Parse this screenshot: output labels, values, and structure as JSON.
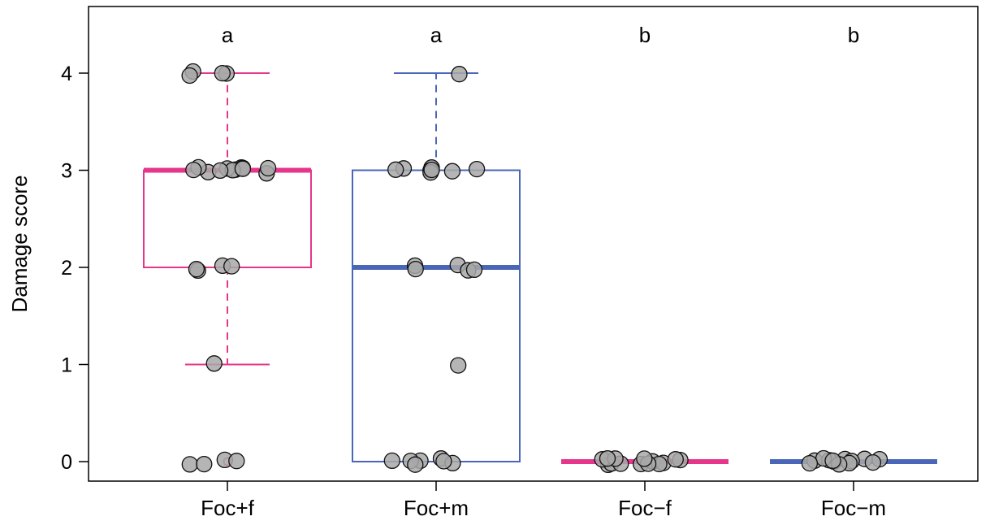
{
  "chart_data": {
    "type": "box",
    "title": "",
    "xlabel": "",
    "ylabel": "Damage score",
    "ylim": [
      -0.2,
      4.65
    ],
    "yticks": [
      0,
      1,
      2,
      3,
      4
    ],
    "grid": false,
    "legend": "none",
    "jitter_points": true,
    "point_color": "#a8a8a8",
    "groups": [
      {
        "name": "Foc+f",
        "color": "#e5368b",
        "letter": "a",
        "box": {
          "min": 1,
          "q1": 2,
          "median": 3,
          "q3": 3,
          "max": 4
        },
        "outliers": [
          0
        ],
        "points": [
          4,
          4,
          4,
          4,
          3,
          3,
          3,
          3,
          3,
          3,
          3,
          3,
          3,
          3,
          3,
          3,
          2,
          2,
          2,
          2,
          1,
          0,
          0,
          0,
          0
        ]
      },
      {
        "name": "Foc+m",
        "color": "#4a66b8",
        "letter": "a",
        "box": {
          "min": 0,
          "q1": 0,
          "median": 2,
          "q3": 3,
          "max": 4
        },
        "outliers": [],
        "points": [
          4,
          3,
          3,
          3,
          3,
          3,
          3,
          3,
          3,
          2,
          2,
          2,
          2,
          2,
          1,
          0,
          0,
          0,
          0,
          0,
          0,
          0
        ]
      },
      {
        "name": "Foc−f",
        "color": "#e5368b",
        "letter": "b",
        "box": {
          "min": 0,
          "q1": 0,
          "median": 0,
          "q3": 0,
          "max": 0
        },
        "outliers": [],
        "points": [
          0,
          0,
          0,
          0,
          0,
          0,
          0,
          0,
          0,
          0,
          0,
          0,
          0,
          0
        ]
      },
      {
        "name": "Foc−m",
        "color": "#4a66b8",
        "letter": "b",
        "box": {
          "min": 0,
          "q1": 0,
          "median": 0,
          "q3": 0,
          "max": 0
        },
        "outliers": [],
        "points": [
          0,
          0,
          0,
          0,
          0,
          0,
          0,
          0,
          0,
          0,
          0,
          0,
          0
        ]
      }
    ]
  }
}
